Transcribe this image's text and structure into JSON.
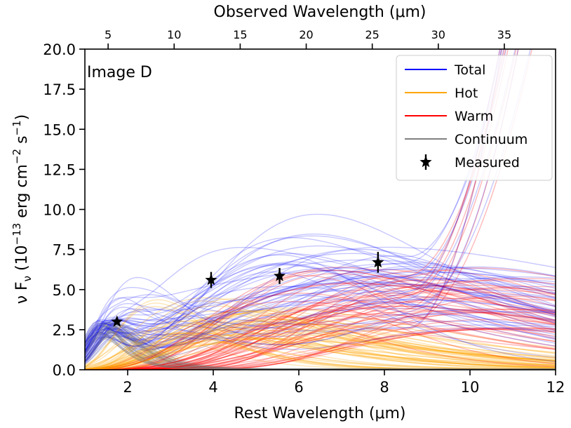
{
  "chart_data": {
    "type": "line",
    "annotation": "Image D",
    "xlabel": "Rest Wavelength (μm)",
    "x2label": "Observed Wavelength (μm)",
    "ylabel": "ν F",
    "ylabel_sub": "ν",
    "ylabel_unit_prefix": " (10",
    "ylabel_exp1": "−13",
    "ylabel_mid": " erg cm",
    "ylabel_exp2": "−2",
    "ylabel_mid2": " s",
    "ylabel_exp3": "−1",
    "ylabel_end": ")",
    "xlim": [
      1,
      12
    ],
    "ylim": [
      0,
      20
    ],
    "xticks": [
      2,
      4,
      6,
      8,
      10,
      12
    ],
    "xtick_labels": [
      "2",
      "4",
      "6",
      "8",
      "10",
      "12"
    ],
    "yticks": [
      0,
      2.5,
      5,
      7.5,
      10,
      12.5,
      15,
      17.5,
      20
    ],
    "ytick_labels": [
      "0.0",
      "2.5",
      "5.0",
      "7.5",
      "10.0",
      "12.5",
      "15.0",
      "17.5",
      "20.0"
    ],
    "observed_ticks": [
      5,
      10,
      15,
      20,
      25,
      30,
      35
    ],
    "observed_tick_labels": [
      "5",
      "10",
      "15",
      "20",
      "25",
      "30",
      "35"
    ],
    "observed_rest_factor": 3.24,
    "legend_position": "upper-right",
    "legend": [
      {
        "name": "Total",
        "color": "#0000ff",
        "marker": "line"
      },
      {
        "name": "Hot",
        "color": "#ffa500",
        "marker": "line"
      },
      {
        "name": "Warm",
        "color": "#ff0000",
        "marker": "line"
      },
      {
        "name": "Continuum",
        "color": "#808080",
        "marker": "line"
      },
      {
        "name": "Measured",
        "color": "#000000",
        "marker": "star"
      }
    ],
    "measured": [
      {
        "x": 1.75,
        "y": 3.0,
        "yerr": 0.15
      },
      {
        "x": 3.95,
        "y": 5.6,
        "yerr": 0.5
      },
      {
        "x": 5.55,
        "y": 5.85,
        "yerr": 0.5
      },
      {
        "x": 7.85,
        "y": 6.7,
        "yerr": 0.65
      }
    ]
  }
}
